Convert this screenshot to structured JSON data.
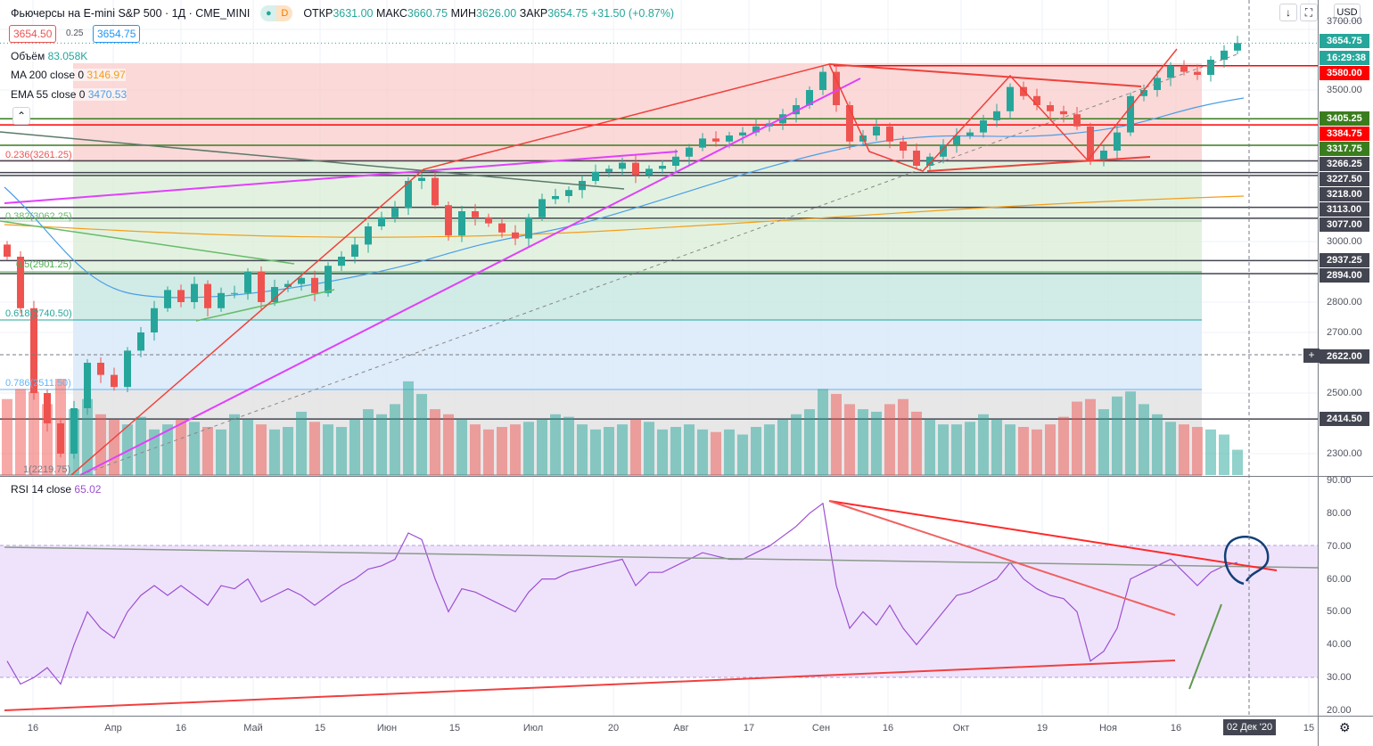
{
  "header": {
    "title": "Фьючерсы на E-mini S&P 500 · 1Д · CME_MINI",
    "badge": "D",
    "open_label": "ОТКР",
    "open": "3631.00",
    "high_label": "МАКС",
    "high": "3660.75",
    "low_label": "МИН",
    "low": "3626.00",
    "close_label": "ЗАКР",
    "close": "3654.75",
    "change": "+31.50 (+0.87%)"
  },
  "quote": {
    "bid": "3654.50",
    "spread": "0.25",
    "ask": "3654.75"
  },
  "legend": {
    "volume_label": "Объём",
    "volume": "83.058K",
    "ma_label": "MA 200 close 0",
    "ma": "3146.97",
    "ema_label": "EMA 55 close 0",
    "ema": "3470.53",
    "rsi_label": "RSI 14 close",
    "rsi": "65.02"
  },
  "currency": "USD",
  "colors": {
    "up": "#26a69a",
    "down": "#ef5350",
    "ma": "#f59d1a",
    "ema": "#4a9ee8",
    "rsi": "#9c4fd3"
  },
  "price_ticks": [
    "3700.00",
    "3500.00",
    "3000.00",
    "2800.00",
    "2700.00",
    "2500.00",
    "2300.00"
  ],
  "price_tick_values": [
    3700,
    3500,
    3000,
    2800,
    2700,
    2500,
    2300
  ],
  "rsi_ticks": [
    "90.00",
    "80.00",
    "70.00",
    "60.00",
    "50.00",
    "40.00",
    "30.00",
    "20.00"
  ],
  "levels": [
    {
      "price": 3654.75,
      "label": "3654.75",
      "color": "#26a69a"
    },
    {
      "price": 3580,
      "label": "3580.00",
      "color": "#ff0000"
    },
    {
      "price": 3405.25,
      "label": "3405.25",
      "color": "#3a7d1e"
    },
    {
      "price": 3384.75,
      "label": "3384.75",
      "color": "#ff0000"
    },
    {
      "price": 3317.75,
      "label": "3317.75",
      "color": "#3a7d1e"
    },
    {
      "price": 3266.25,
      "label": "3266.25",
      "color": "#434651"
    },
    {
      "price": 3227.5,
      "label": "3227.50",
      "color": "#434651"
    },
    {
      "price": 3218,
      "label": "3218.00",
      "color": "#434651"
    },
    {
      "price": 3113,
      "label": "3113.00",
      "color": "#434651"
    },
    {
      "price": 3077,
      "label": "3077.00",
      "color": "#434651"
    },
    {
      "price": 2937.25,
      "label": "2937.25",
      "color": "#434651"
    },
    {
      "price": 2894,
      "label": "2894.00",
      "color": "#434651"
    },
    {
      "price": 2622,
      "label": "2622.00",
      "color": "#434651"
    },
    {
      "price": 2414.5,
      "label": "2414.50",
      "color": "#434651"
    }
  ],
  "countdown": "16:29:38",
  "fib": [
    {
      "label": "0.236(3261.25)",
      "color": "#ef5350"
    },
    {
      "label": "0.382(3062.25)",
      "color": "#66bb6a"
    },
    {
      "label": "0.5(2901.25)",
      "color": "#4caf50"
    },
    {
      "label": "0.618(2740.50)",
      "color": "#26a69a"
    },
    {
      "label": "0.786(2511.50)",
      "color": "#64b5f6"
    },
    {
      "label": "1(2219.75)",
      "color": "#787b86"
    }
  ],
  "time_labels": [
    "16",
    "Апр",
    "16",
    "Май",
    "15",
    "Июн",
    "15",
    "Июл",
    "20",
    "Авг",
    "17",
    "Сен",
    "16",
    "Окт",
    "19",
    "Ноя",
    "16",
    "15"
  ],
  "current_date": "02 Дек '20",
  "chart_data": {
    "type": "candlestick",
    "closes": [
      2950,
      2780,
      2500,
      2400,
      2300,
      2450,
      2600,
      2560,
      2520,
      2640,
      2700,
      2780,
      2840,
      2800,
      2860,
      2780,
      2830,
      2830,
      2900,
      2800,
      2850,
      2860,
      2880,
      2830,
      2920,
      2950,
      2990,
      3050,
      3080,
      3110,
      3200,
      3210,
      3120,
      3020,
      3100,
      3080,
      3060,
      3030,
      3010,
      3080,
      3140,
      3150,
      3170,
      3200,
      3230,
      3240,
      3260,
      3220,
      3240,
      3250,
      3280,
      3310,
      3340,
      3330,
      3350,
      3360,
      3380,
      3390,
      3420,
      3450,
      3500,
      3560,
      3450,
      3330,
      3350,
      3380,
      3330,
      3300,
      3250,
      3280,
      3320,
      3350,
      3360,
      3400,
      3430,
      3510,
      3480,
      3450,
      3430,
      3420,
      3380,
      3270,
      3300,
      3360,
      3480,
      3500,
      3540,
      3580,
      3560,
      3550,
      3600,
      3630,
      3655
    ],
    "volumes": [
      1500,
      1700,
      1650,
      1400,
      1900,
      1300,
      1500,
      1200,
      1100,
      1000,
      1150,
      900,
      1000,
      1100,
      1050,
      950,
      900,
      1200,
      1100,
      1000,
      900,
      950,
      1250,
      1050,
      1000,
      950,
      1100,
      1300,
      1200,
      1400,
      1850,
      1600,
      1300,
      1200,
      1100,
      1000,
      900,
      950,
      1000,
      1050,
      1100,
      1200,
      1150,
      1000,
      900,
      950,
      1000,
      1100,
      1050,
      900,
      950,
      1000,
      900,
      850,
      900,
      800,
      950,
      1000,
      1100,
      1200,
      1300,
      1700,
      1600,
      1400,
      1300,
      1250,
      1400,
      1500,
      1250,
      1100,
      1000,
      1000,
      1050,
      1200,
      1100,
      1000,
      950,
      900,
      1000,
      1150,
      1450,
      1500,
      1300,
      1550,
      1650,
      1400,
      1200,
      1050,
      1000,
      950,
      900,
      800,
      500
    ],
    "rsi": [
      35,
      28,
      30,
      33,
      28,
      40,
      50,
      45,
      42,
      50,
      55,
      58,
      55,
      58,
      55,
      52,
      58,
      57,
      60,
      53,
      55,
      57,
      55,
      52,
      55,
      58,
      60,
      63,
      64,
      66,
      74,
      72,
      60,
      50,
      57,
      56,
      54,
      52,
      50,
      56,
      60,
      60,
      62,
      63,
      64,
      65,
      66,
      58,
      62,
      62,
      64,
      66,
      68,
      67,
      66,
      66,
      68,
      70,
      73,
      76,
      80,
      83,
      58,
      45,
      50,
      46,
      52,
      45,
      40,
      45,
      50,
      55,
      56,
      58,
      60,
      65,
      60,
      57,
      55,
      54,
      50,
      35,
      38,
      45,
      60,
      62,
      64,
      66,
      62,
      58,
      62,
      64,
      65
    ],
    "price_range": [
      2200,
      3720
    ],
    "rsi_range": [
      18,
      92
    ]
  }
}
